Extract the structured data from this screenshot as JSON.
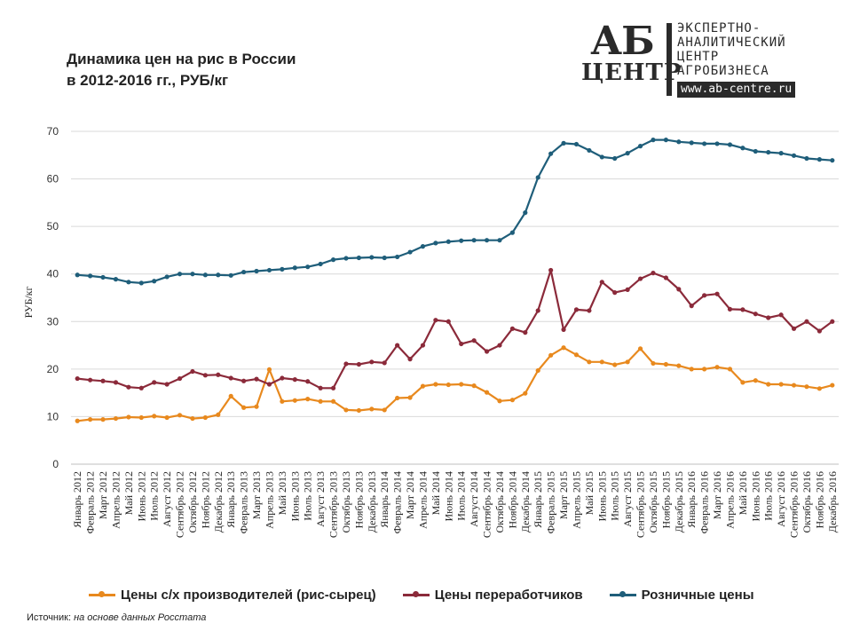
{
  "title_line1": "Динамика цен на рис в России",
  "title_line2": "в 2012-2016 гг., РУБ/кг",
  "logo": {
    "mark_top": "АБ",
    "mark_bottom": "ЦЕНТР",
    "line1": "ЭКСПЕРТНО-",
    "line2": "АНАЛИТИЧЕСКИЙ",
    "line3": "ЦЕНТР",
    "line4": "АГРОБИЗНЕСА",
    "url": "www.ab-centre.ru"
  },
  "source_label": "Источник:",
  "source_text": "на основе данных Росстата",
  "chart_data": {
    "type": "line",
    "title": "Динамика цен на рис в России в 2012-2016 гг., РУБ/кг",
    "ylabel": "РУБ/кг",
    "xlabel": "",
    "ylim": [
      0,
      70
    ],
    "yticks": [
      0,
      10,
      20,
      30,
      40,
      50,
      60,
      70
    ],
    "grid": "horizontal",
    "legend_position": "bottom",
    "categories": [
      "Январь 2012",
      "Февраль 2012",
      "Март 2012",
      "Апрель 2012",
      "Май 2012",
      "Июнь 2012",
      "Июль 2012",
      "Август 2012",
      "Сентябрь 2012",
      "Октябрь 2012",
      "Ноябрь 2012",
      "Декабрь 2012",
      "Январь 2013",
      "Февраль 2013",
      "Март 2013",
      "Апрель 2013",
      "Май 2013",
      "Июнь 2013",
      "Июль 2013",
      "Август 2013",
      "Сентябрь 2013",
      "Октябрь 2013",
      "Ноябрь 2013",
      "Декабрь 2013",
      "Январь 2014",
      "Февраль 2014",
      "Март 2014",
      "Апрель 2014",
      "Май 2014",
      "Июнь 2014",
      "Июль 2014",
      "Август 2014",
      "Сентябрь 2014",
      "Октябрь 2014",
      "Ноябрь 2014",
      "Декабрь 2014",
      "Январь 2015",
      "Февраль 2015",
      "Март 2015",
      "Апрель 2015",
      "Май 2015",
      "Июнь 2015",
      "Июль 2015",
      "Август 2015",
      "Сентябрь 2015",
      "Октябрь 2015",
      "Ноябрь 2015",
      "Декабрь 2015",
      "Январь 2016",
      "Февраль 2016",
      "Март 2016",
      "Апрель 2016",
      "Май 2016",
      "Июнь 2016",
      "Июль 2016",
      "Август 2016",
      "Сентябрь 2016",
      "Октябрь 2016",
      "Ноябрь 2016",
      "Декабрь 2016"
    ],
    "series": [
      {
        "name": "Цены с/х производителей (рис-сырец)",
        "color": "#e8891e",
        "values": [
          9.1,
          9.4,
          9.4,
          9.6,
          9.9,
          9.8,
          10.1,
          9.8,
          10.3,
          9.6,
          9.8,
          10.4,
          14.3,
          11.9,
          12.1,
          19.9,
          13.2,
          13.4,
          13.7,
          13.2,
          13.2,
          11.4,
          11.3,
          11.6,
          11.4,
          13.9,
          14.0,
          16.4,
          16.8,
          16.7,
          16.8,
          16.5,
          15.1,
          13.3,
          13.5,
          14.9,
          19.7,
          22.9,
          24.5,
          23.0,
          21.5,
          21.5,
          20.9,
          21.5,
          24.3,
          21.2,
          21.0,
          20.7,
          20.0,
          20.0,
          20.4,
          20.0,
          17.2,
          17.6,
          16.8,
          16.8,
          16.6,
          16.3,
          15.9,
          16.6
        ]
      },
      {
        "name": "Цены переработчиков",
        "color": "#8b2a3a",
        "values": [
          18.0,
          17.7,
          17.5,
          17.2,
          16.2,
          16.0,
          17.2,
          16.8,
          18.0,
          19.5,
          18.7,
          18.8,
          18.1,
          17.5,
          17.9,
          16.8,
          18.1,
          17.8,
          17.4,
          16.0,
          16.0,
          21.1,
          21.0,
          21.5,
          21.3,
          25.0,
          22.1,
          25.0,
          30.3,
          30.0,
          25.3,
          26.0,
          23.7,
          25.0,
          28.5,
          27.7,
          32.3,
          40.8,
          28.3,
          32.5,
          32.3,
          38.3,
          36.1,
          36.7,
          39.0,
          40.2,
          39.2,
          36.8,
          33.3,
          35.5,
          35.8,
          32.6,
          32.5,
          31.6,
          30.8,
          31.4,
          28.5,
          30.0,
          28.0,
          30.0
        ]
      },
      {
        "name": "Розничные цены",
        "color": "#1f5e7a",
        "values": [
          39.8,
          39.6,
          39.3,
          38.9,
          38.3,
          38.1,
          38.5,
          39.4,
          40.0,
          40.0,
          39.8,
          39.8,
          39.7,
          40.4,
          40.6,
          40.8,
          41.0,
          41.3,
          41.5,
          42.1,
          43.0,
          43.3,
          43.4,
          43.5,
          43.4,
          43.6,
          44.6,
          45.8,
          46.5,
          46.8,
          47.0,
          47.1,
          47.1,
          47.1,
          48.7,
          52.9,
          60.3,
          65.3,
          67.5,
          67.3,
          66.0,
          64.6,
          64.3,
          65.4,
          66.9,
          68.2,
          68.2,
          67.8,
          67.6,
          67.4,
          67.4,
          67.2,
          66.5,
          65.8,
          65.6,
          65.4,
          64.9,
          64.3,
          64.1,
          63.9
        ]
      }
    ]
  }
}
